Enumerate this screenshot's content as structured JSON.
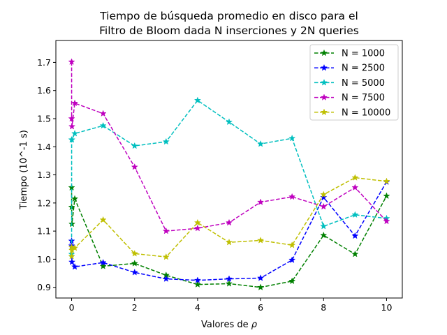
{
  "chart_data": {
    "type": "line",
    "title_lines": [
      "Tiempo de búsqueda promedio en disco para el",
      "Filtro de Bloom dada N inserciones y 2N queries"
    ],
    "xlabel_prefix": "Valores de ",
    "xlabel_symbol": "ρ",
    "ylabel": "Tiempo (10^-1 s)",
    "xlim": [
      -0.5,
      10.5
    ],
    "ylim": [
      0.862,
      1.778
    ],
    "xticks": [
      0,
      2,
      4,
      6,
      8,
      10
    ],
    "yticks": [
      0.9,
      1.0,
      1.1,
      1.2,
      1.3,
      1.4,
      1.5,
      1.6,
      1.7
    ],
    "ytick_labels": [
      "0.9",
      "1.0",
      "1.1",
      "1.2",
      "1.3",
      "1.4",
      "1.5",
      "1.6",
      "1.7"
    ],
    "grid": false,
    "legend_position": "top-right",
    "x": [
      0,
      0.001,
      0.01,
      0.1,
      1,
      2,
      3,
      4,
      5,
      6,
      7,
      8,
      9,
      10
    ],
    "series": [
      {
        "name": "N = 1000",
        "color": "#008000",
        "values": [
          1.255,
          1.185,
          1.125,
          1.215,
          0.975,
          0.985,
          0.943,
          0.91,
          0.913,
          0.9,
          0.922,
          1.085,
          1.018,
          1.225
        ]
      },
      {
        "name": "N = 2500",
        "color": "#0000ff",
        "values": [
          1.065,
          1.048,
          0.99,
          0.973,
          0.988,
          0.953,
          0.93,
          0.925,
          0.93,
          0.933,
          0.997,
          1.22,
          1.083,
          1.275
        ]
      },
      {
        "name": "N = 5000",
        "color": "#00bfbf",
        "values": [
          1.018,
          1.425,
          1.425,
          1.447,
          1.475,
          1.403,
          1.418,
          1.565,
          1.488,
          1.41,
          1.43,
          1.117,
          1.158,
          1.145
        ]
      },
      {
        "name": "N = 7500",
        "color": "#bf00bf",
        "values": [
          1.702,
          1.5,
          1.472,
          1.555,
          1.518,
          1.328,
          1.1,
          1.11,
          1.13,
          1.203,
          1.222,
          1.187,
          1.255,
          1.135
        ]
      },
      {
        "name": "N = 10000",
        "color": "#bfbf00",
        "values": [
          1.043,
          1.01,
          1.032,
          1.04,
          1.14,
          1.02,
          1.008,
          1.13,
          1.06,
          1.067,
          1.05,
          1.23,
          1.29,
          1.277
        ]
      }
    ]
  }
}
